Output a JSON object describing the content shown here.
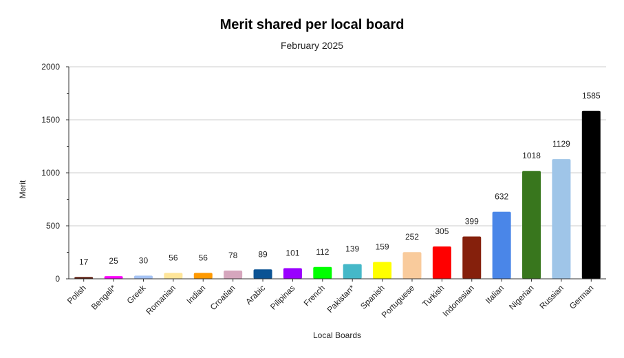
{
  "chart_data": {
    "type": "bar",
    "title": "Merit shared per local board",
    "subtitle": "February 2025",
    "xlabel": "Local Boards",
    "ylabel": "Merit",
    "ylim": [
      0,
      2000
    ],
    "yticks": [
      0,
      500,
      1000,
      1500,
      2000
    ],
    "grid": true,
    "legend": "none",
    "categories": [
      "Polish",
      "Bengali*",
      "Greek",
      "Romanian",
      "Indian",
      "Croatian",
      "Arabic",
      "Pilipinas",
      "French",
      "Pakistan*",
      "Spanish",
      "Portuguese",
      "Turkish",
      "Indonesian",
      "Italian",
      "Nigerian",
      "Russian",
      "German"
    ],
    "values": [
      17,
      25,
      30,
      56,
      56,
      78,
      89,
      101,
      112,
      139,
      159,
      252,
      305,
      399,
      632,
      1018,
      1129,
      1585
    ],
    "colors": [
      "#5b1a0d",
      "#ff00ff",
      "#a4c2f4",
      "#ffe599",
      "#ff9900",
      "#d5a6bd",
      "#0b5394",
      "#9900ff",
      "#00ff00",
      "#45b8c8",
      "#ffff00",
      "#f9cb9c",
      "#ff0000",
      "#85200c",
      "#4a86e8",
      "#38761d",
      "#9fc5e8",
      "#000000"
    ]
  }
}
